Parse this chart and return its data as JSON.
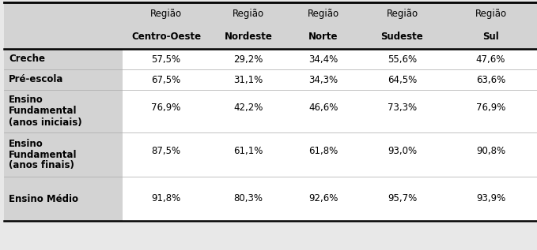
{
  "col_header_line1": [
    "Região",
    "Região",
    "Região",
    "Região",
    "Região"
  ],
  "col_header_line2": [
    "Centro-Oeste",
    "Nordeste",
    "Norte",
    "Sudeste",
    "Sul"
  ],
  "row_labels": [
    "Creche",
    "Pré-escola",
    "Ensino\nFundamental\n(anos iniciais)",
    "Ensino\nFundamental\n(anos finais)",
    "Ensino Médio"
  ],
  "data": [
    [
      "57,5%",
      "29,2%",
      "34,4%",
      "55,6%",
      "47,6%"
    ],
    [
      "67,5%",
      "31,1%",
      "34,3%",
      "64,5%",
      "63,6%"
    ],
    [
      "76,9%",
      "42,2%",
      "46,6%",
      "73,3%",
      "76,9%"
    ],
    [
      "87,5%",
      "61,1%",
      "61,8%",
      "93,0%",
      "90,8%"
    ],
    [
      "91,8%",
      "80,3%",
      "92,6%",
      "95,7%",
      "93,9%"
    ]
  ],
  "header_bg": "#d3d3d3",
  "font_size": 8.5,
  "figsize": [
    6.79,
    3.17
  ],
  "dpi": 100,
  "fig_bg": "#e8e8e8",
  "row_label_lines": [
    [
      "Creche"
    ],
    [
      "Pré-escola"
    ],
    [
      "Ensino",
      "Fundamental",
      "(anos iniciais)"
    ],
    [
      "Ensino",
      "Fundamental",
      "(anos finais)"
    ],
    [
      "Ensino Médio"
    ]
  ]
}
